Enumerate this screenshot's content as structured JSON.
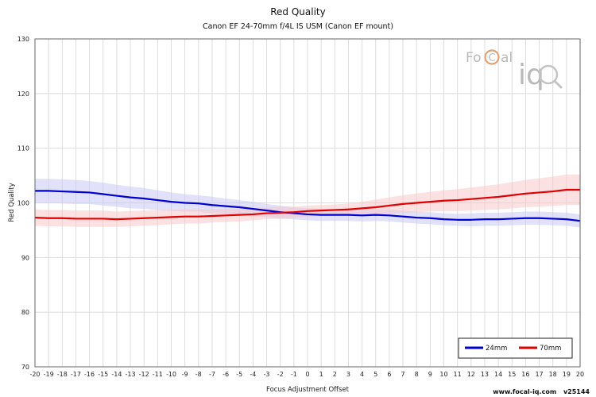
{
  "chart_data": {
    "type": "line",
    "title": "Red Quality",
    "subtitle": "Canon EF 24-70mm f/4L IS USM (Canon EF mount)",
    "xlabel": "Focus Adjustment Offset",
    "ylabel": "Red Quality",
    "xlim": [
      -20,
      20
    ],
    "ylim": [
      70,
      130
    ],
    "yticks": [
      70,
      80,
      90,
      100,
      110,
      120,
      130
    ],
    "grid": true,
    "legend_position": "bottom-right",
    "x": [
      -20,
      -19,
      -18,
      -17,
      -16,
      -15,
      -14,
      -13,
      -12,
      -11,
      -10,
      -9,
      -8,
      -7,
      -6,
      -5,
      -4,
      -3,
      -2,
      -1,
      0,
      1,
      2,
      3,
      4,
      5,
      6,
      7,
      8,
      9,
      10,
      11,
      12,
      13,
      14,
      15,
      16,
      17,
      18,
      19,
      20
    ],
    "series": [
      {
        "name": "24mm",
        "color": "#0000d0",
        "band_color": "#c8c8f5",
        "values": [
          102.2,
          102.2,
          102.1,
          102.0,
          101.9,
          101.6,
          101.3,
          101.0,
          100.8,
          100.5,
          100.2,
          100.0,
          99.9,
          99.6,
          99.4,
          99.2,
          98.9,
          98.6,
          98.3,
          98.1,
          97.9,
          97.8,
          97.8,
          97.8,
          97.7,
          97.8,
          97.7,
          97.5,
          97.3,
          97.2,
          97.0,
          96.9,
          96.9,
          97.0,
          97.0,
          97.1,
          97.2,
          97.2,
          97.1,
          97.0,
          96.7
        ],
        "band_halfwidth": [
          2.2,
          2.2,
          2.2,
          2.2,
          2.1,
          2.1,
          2.0,
          2.0,
          1.9,
          1.8,
          1.7,
          1.6,
          1.5,
          1.5,
          1.4,
          1.3,
          1.3,
          1.2,
          1.2,
          1.1,
          1.1,
          1.1,
          1.1,
          1.1,
          1.1,
          1.1,
          1.1,
          1.1,
          1.1,
          1.1,
          1.1,
          1.1,
          1.2,
          1.2,
          1.2,
          1.2,
          1.2,
          1.2,
          1.2,
          1.2,
          1.2
        ]
      },
      {
        "name": "70mm",
        "color": "#e00000",
        "band_color": "#f8c8c8",
        "values": [
          97.3,
          97.2,
          97.2,
          97.1,
          97.1,
          97.1,
          97.0,
          97.1,
          97.2,
          97.3,
          97.4,
          97.5,
          97.5,
          97.6,
          97.7,
          97.8,
          97.9,
          98.1,
          98.2,
          98.3,
          98.5,
          98.6,
          98.7,
          98.8,
          99.0,
          99.2,
          99.5,
          99.8,
          100.0,
          100.2,
          100.4,
          100.5,
          100.7,
          100.9,
          101.1,
          101.4,
          101.7,
          101.9,
          102.1,
          102.4,
          102.4
        ],
        "band_halfwidth": [
          1.5,
          1.5,
          1.5,
          1.5,
          1.5,
          1.5,
          1.4,
          1.4,
          1.4,
          1.4,
          1.3,
          1.3,
          1.3,
          1.2,
          1.2,
          1.2,
          1.1,
          1.1,
          1.1,
          1.0,
          1.0,
          1.0,
          1.0,
          1.1,
          1.2,
          1.4,
          1.5,
          1.6,
          1.7,
          1.8,
          1.9,
          2.0,
          2.1,
          2.2,
          2.3,
          2.4,
          2.5,
          2.6,
          2.7,
          2.8,
          2.8
        ]
      }
    ]
  },
  "logo": {
    "left_text": "Fo",
    "c_letter": "C",
    "right_text": "al",
    "iq_text": "iq"
  },
  "footer": {
    "site": "www.focal-iq.com",
    "version": "v25144"
  }
}
